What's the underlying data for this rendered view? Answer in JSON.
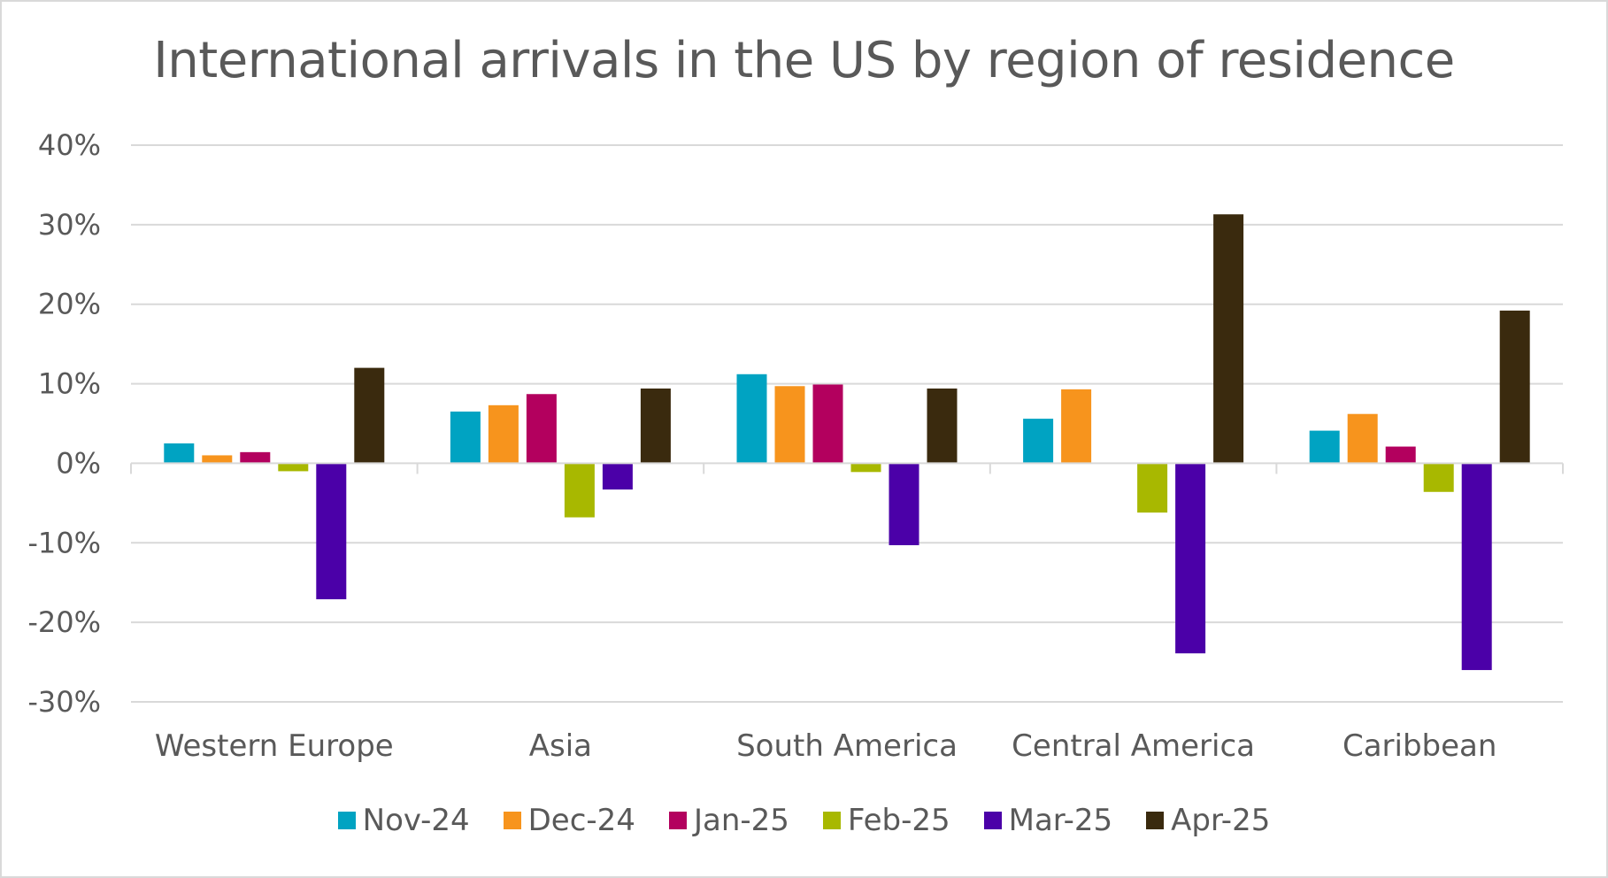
{
  "chart_data": {
    "type": "bar",
    "title": "International arrivals in the US by region of residence",
    "xlabel": "",
    "ylabel": "",
    "categories": [
      "Western Europe",
      "Asia",
      "South America",
      "Central America",
      "Caribbean"
    ],
    "series": [
      {
        "name": "Nov-24",
        "color": "#00A3C2",
        "values": [
          2.5,
          6.5,
          11.2,
          5.6,
          4.1
        ]
      },
      {
        "name": "Dec-24",
        "color": "#F7941D",
        "values": [
          1.0,
          7.3,
          9.7,
          9.3,
          6.2
        ]
      },
      {
        "name": "Jan-25",
        "color": "#B3005E",
        "values": [
          1.4,
          8.7,
          9.9,
          0.0,
          2.1
        ]
      },
      {
        "name": "Feb-25",
        "color": "#A8B800",
        "values": [
          -1.0,
          -6.8,
          -1.1,
          -6.2,
          -3.6
        ]
      },
      {
        "name": "Mar-25",
        "color": "#4B00A8",
        "values": [
          -17.1,
          -3.3,
          -10.3,
          -23.9,
          -26.0
        ]
      },
      {
        "name": "Apr-25",
        "color": "#3A2A0E",
        "values": [
          12.0,
          9.4,
          9.4,
          31.3,
          19.2
        ]
      }
    ],
    "ylim": [
      -30,
      40
    ],
    "yticks": [
      -30,
      -20,
      -10,
      0,
      10,
      20,
      30,
      40
    ],
    "ytick_labels": [
      "-30%",
      "-20%",
      "-10%",
      "0%",
      "10%",
      "20%",
      "30%",
      "40%"
    ],
    "grid": true,
    "legend_position": "bottom"
  }
}
